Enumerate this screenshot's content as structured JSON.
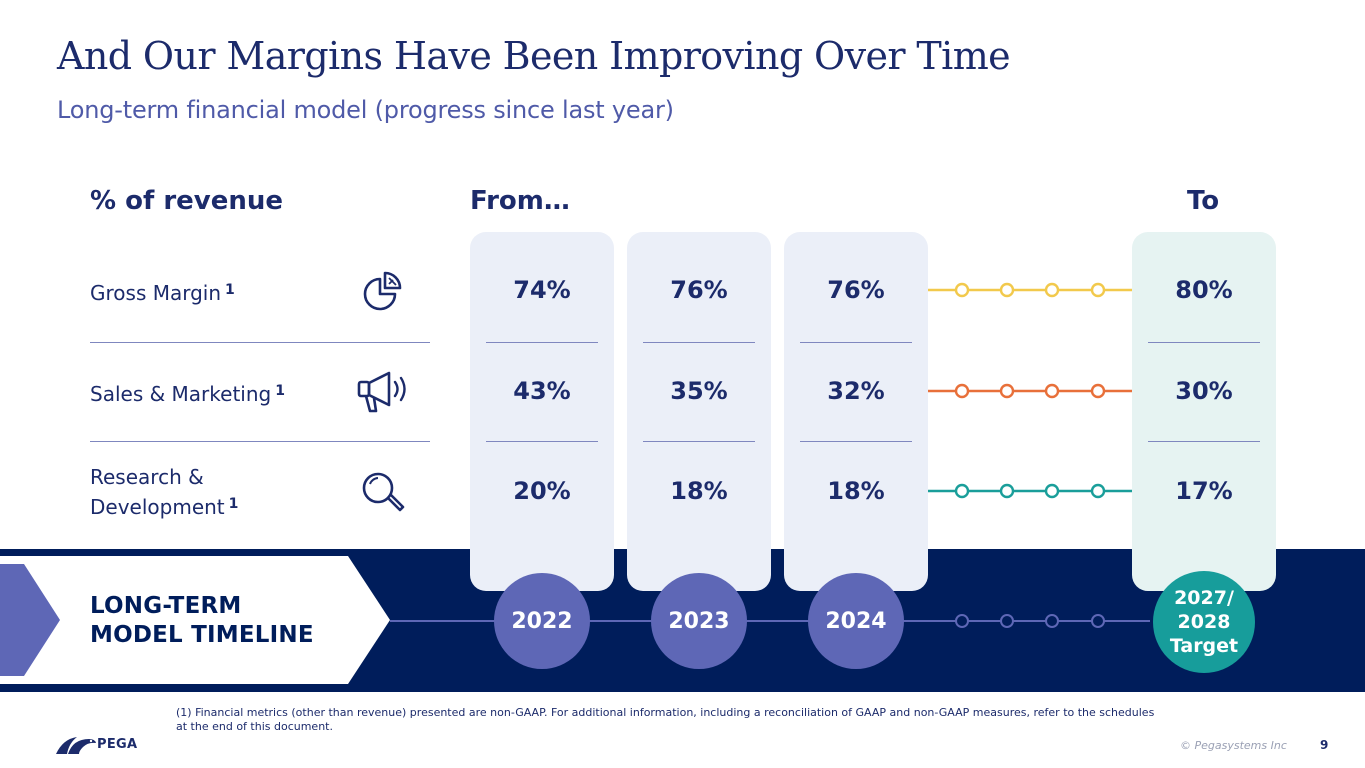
{
  "header": {
    "title": "And Our Margins Have Been Improving Over Time",
    "subtitle": "Long-term financial model (progress since last year)"
  },
  "columns": {
    "metric_header": "% of revenue",
    "from_header": "From…",
    "to_header": "To"
  },
  "rows": [
    {
      "label": "Gross Margin",
      "footnote": "1",
      "icon": "pie-chart-icon",
      "line_color": "#f2c94c"
    },
    {
      "label": "Sales & Marketing",
      "footnote": "1",
      "icon": "megaphone-icon",
      "line_color": "#e8703a"
    },
    {
      "label_line1": "Research &",
      "label_line2": "Development",
      "footnote": "1",
      "icon": "magnifier-icon",
      "line_color": "#1a9e9a"
    }
  ],
  "years": [
    {
      "label": "2022",
      "values": [
        "74%",
        "43%",
        "20%"
      ]
    },
    {
      "label": "2023",
      "values": [
        "76%",
        "35%",
        "18%"
      ]
    },
    {
      "label": "2024",
      "values": [
        "76%",
        "32%",
        "18%"
      ]
    }
  ],
  "target": {
    "line1": "2027/",
    "line2": "2028",
    "line3": "Target",
    "values": [
      "80%",
      "30%",
      "17%"
    ]
  },
  "timeline": {
    "label_line1": "LONG-TERM",
    "label_line2": "MODEL TIMELINE"
  },
  "footer": {
    "footnote": "(1) Financial metrics (other than revenue) presented are non-GAAP.  For additional information, including a reconciliation of GAAP and non-GAAP measures, refer to the schedules at the end of this document.",
    "copyright": "© Pegasystems Inc",
    "page_number": "9",
    "logo_text": "PEGA"
  },
  "colors": {
    "navy": "#001d5b",
    "title": "#1c2b6b",
    "purple": "#5e67b6",
    "teal": "#179d9b"
  }
}
